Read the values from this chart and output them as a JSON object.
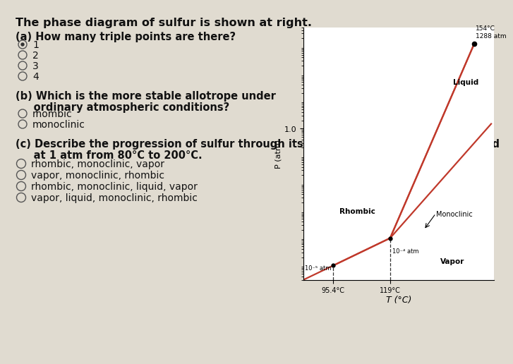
{
  "bg_color": "#e0dbd0",
  "title_text": "The phase diagram of sulfur is shown at right.",
  "q_a_header": "(a) How many triple points are there?",
  "options_a": [
    "1",
    "2",
    "3",
    "4"
  ],
  "selected_a": 0,
  "q_b_line1": "(b) Which is the more stable allotrope under",
  "q_b_line2": "     ordinary atmospheric conditions?",
  "options_b": [
    "rhombic",
    "monoclinic"
  ],
  "q_c_line1": "(c) Describe the progression of sulfur through its various phases when it is heated",
  "q_c_line2": "     at 1 atm from 80°C to 200°C.",
  "options_c": [
    "rhombic, monoclinic, vapor",
    "vapor, monoclinic, rhombic",
    "rhombic, monoclinic, liquid, vapor",
    "vapor, liquid, monoclinic, rhombic"
  ],
  "diagram": {
    "xlabel": "T (°C)",
    "ylabel": "P (atm)",
    "line_color": "#c0392b",
    "line_width": 1.6,
    "T1": 95.4,
    "P1": 1e-05,
    "T2": 119.0,
    "P2": 0.0001,
    "T3": 154.0,
    "P3": 1288.0,
    "label_tp3": "154°C\n1288 atm",
    "label_tp1_P": "10⁻⁵ atm",
    "label_tp2_P": "10⁻⁴ atm",
    "region_rhombic": "Rhombic",
    "region_liquid": "Liquid",
    "region_monoclinic": "Monoclinic",
    "region_vapor": "Vapor",
    "tick_1atm": "1.0",
    "tick_T1": "95.4°C",
    "tick_T2": "119°C"
  }
}
